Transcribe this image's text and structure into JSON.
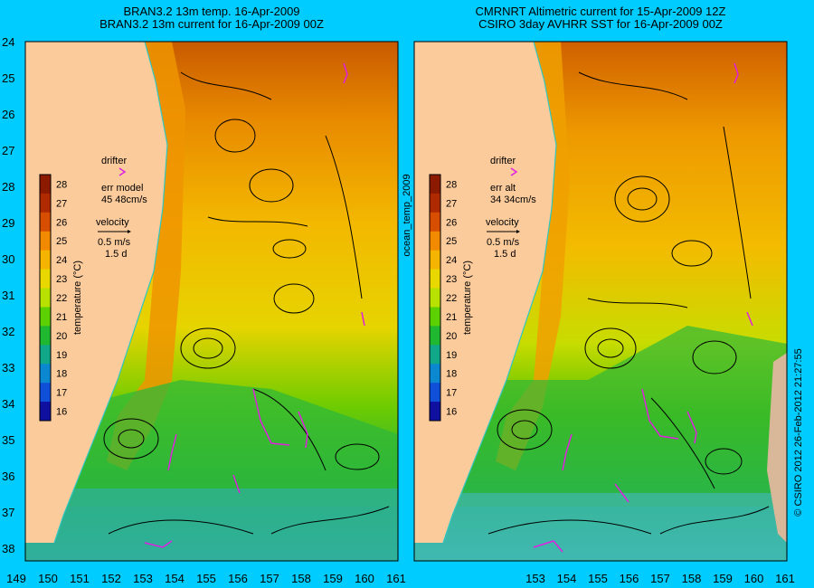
{
  "left_panel": {
    "title_line1": "BRAN3.2 13m temp. 16-Apr-2009",
    "title_line2": "BRAN3.2 13m current for 16-Apr-2009 00Z",
    "legend": {
      "drifter_label": "drifter",
      "err_label": "err model",
      "err_value": "45 48cm/s",
      "velocity_label": "velocity",
      "velocity_scale": "0.5 m/s",
      "velocity_time": "1.5 d"
    }
  },
  "right_panel": {
    "title_line1": "CMRNRT Altimetric current for 15-Apr-2009 12Z",
    "title_line2": "CSIRO 3day AVHRR SST for 16-Apr-2009 00Z",
    "legend": {
      "drifter_label": "drifter",
      "err_label": "err alt",
      "err_value": "34 34cm/s",
      "velocity_label": "velocity",
      "velocity_scale": "0.5 m/s",
      "velocity_time": "1.5 d"
    }
  },
  "colorbar": {
    "axis_label": "temperature (°C)",
    "ticks": [
      "28",
      "27",
      "26",
      "25",
      "24",
      "23",
      "22",
      "21",
      "20",
      "19",
      "18",
      "17",
      "16"
    ],
    "colors": [
      "#8b1a00",
      "#b02a00",
      "#d84e00",
      "#f28a00",
      "#f5b400",
      "#e8d800",
      "#b8e000",
      "#5cd000",
      "#20b830",
      "#10a888",
      "#0c88d0",
      "#1050d8",
      "#1010a0"
    ]
  },
  "side_labels": {
    "product_label": "ocean_temp_2009",
    "credit": "© CSIRO 2012  26-Feb-2012 21:27:55"
  },
  "axes": {
    "lat_ticks": [
      "24",
      "25",
      "26",
      "27",
      "28",
      "29",
      "30",
      "31",
      "32",
      "33",
      "34",
      "35",
      "36",
      "37",
      "38"
    ],
    "lon_ticks_left": [
      "149",
      "150",
      "151",
      "152",
      "153",
      "154",
      "155",
      "156",
      "157",
      "158",
      "159",
      "160",
      "161"
    ],
    "lon_ticks_right": [
      "153",
      "154",
      "155",
      "156",
      "157",
      "158",
      "159",
      "160",
      "161"
    ]
  },
  "colors": {
    "background": "#00ccff",
    "land": "#fccb9c",
    "drifter": "#e020e0",
    "coast_line": "#30c8c0"
  }
}
